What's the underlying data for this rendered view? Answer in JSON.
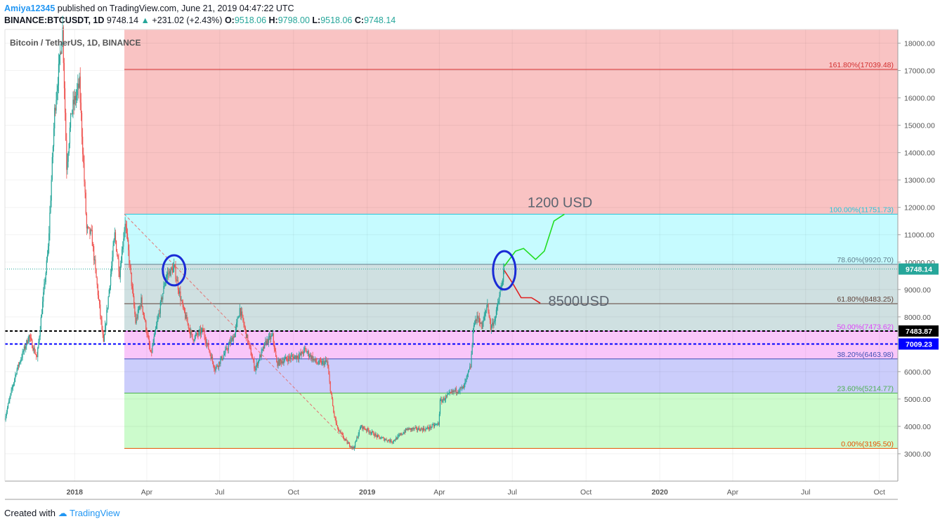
{
  "header": {
    "user": "Amiya12345",
    "published": "published on TradingView.com, June 21, 2019 04:47:22 UTC",
    "symbol": "BINANCE:BTCUSDT, 1D",
    "last": "9748.14",
    "change": "+231.02 (+2.43%)",
    "o_label": "O:",
    "o": "9518.06",
    "h_label": "H:",
    "h": "9798.00",
    "l_label": "L:",
    "l": "9518.06",
    "c_label": "C:",
    "c": "9748.14"
  },
  "pane_title": "Bitcoin / TetherUS, 1D, BINANCE",
  "footer": {
    "created_with": "Created with",
    "brand": "TradingView"
  },
  "chart_data": {
    "type": "candlestick",
    "title": "Bitcoin / TetherUS, 1D, BINANCE",
    "ylim": [
      2000,
      18500
    ],
    "y_ticks": [
      "3000.00",
      "4000.00",
      "5000.00",
      "6000.00",
      "7000.00",
      "8000.00",
      "9000.00",
      "10000.00",
      "11000.00",
      "12000.00",
      "13000.00",
      "14000.00",
      "15000.00",
      "16000.00",
      "17000.00",
      "18000.00"
    ],
    "x_ticks": [
      {
        "label": "2018",
        "date": "2018-01-01",
        "bold": true
      },
      {
        "label": "Apr",
        "date": "2018-04-01"
      },
      {
        "label": "Jul",
        "date": "2018-07-01"
      },
      {
        "label": "Oct",
        "date": "2018-10-01"
      },
      {
        "label": "2019",
        "date": "2019-01-01",
        "bold": true
      },
      {
        "label": "Apr",
        "date": "2019-04-01"
      },
      {
        "label": "Jul",
        "date": "2019-07-01"
      },
      {
        "label": "Oct",
        "date": "2019-10-01"
      },
      {
        "label": "2020",
        "date": "2020-01-01",
        "bold": true
      },
      {
        "label": "Apr",
        "date": "2020-04-01"
      },
      {
        "label": "Jul",
        "date": "2020-07-01"
      },
      {
        "label": "Oct",
        "date": "2020-10-01"
      }
    ],
    "x_range": [
      "2017-10-06",
      "2020-10-24"
    ],
    "price_path": [
      [
        "2017-10-06",
        4300
      ],
      [
        "2017-10-20",
        6000
      ],
      [
        "2017-11-05",
        7300
      ],
      [
        "2017-11-15",
        6500
      ],
      [
        "2017-11-29",
        10500
      ],
      [
        "2017-12-07",
        15500
      ],
      [
        "2017-12-17",
        18500
      ],
      [
        "2017-12-22",
        13500
      ],
      [
        "2017-12-28",
        15500
      ],
      [
        "2018-01-07",
        16500
      ],
      [
        "2018-01-16",
        11200
      ],
      [
        "2018-01-22",
        11000
      ],
      [
        "2018-02-06",
        7000
      ],
      [
        "2018-02-20",
        11000
      ],
      [
        "2018-02-26",
        9600
      ],
      [
        "2018-03-05",
        11500
      ],
      [
        "2018-03-18",
        7800
      ],
      [
        "2018-03-25",
        8600
      ],
      [
        "2018-04-06",
        6600
      ],
      [
        "2018-04-16",
        8100
      ],
      [
        "2018-04-25",
        9500
      ],
      [
        "2018-05-05",
        9800
      ],
      [
        "2018-05-16",
        8300
      ],
      [
        "2018-05-28",
        7200
      ],
      [
        "2018-06-10",
        7500
      ],
      [
        "2018-06-25",
        6100
      ],
      [
        "2018-07-06",
        6600
      ],
      [
        "2018-07-20",
        7400
      ],
      [
        "2018-07-26",
        8300
      ],
      [
        "2018-08-06",
        7000
      ],
      [
        "2018-08-14",
        6100
      ],
      [
        "2018-08-28",
        7100
      ],
      [
        "2018-09-05",
        7300
      ],
      [
        "2018-09-10",
        6300
      ],
      [
        "2018-09-25",
        6500
      ],
      [
        "2018-10-10",
        6600
      ],
      [
        "2018-10-15",
        6800
      ],
      [
        "2018-10-31",
        6300
      ],
      [
        "2018-11-12",
        6350
      ],
      [
        "2018-11-15",
        5600
      ],
      [
        "2018-11-20",
        4500
      ],
      [
        "2018-11-25",
        3900
      ],
      [
        "2018-12-07",
        3400
      ],
      [
        "2018-12-15",
        3200
      ],
      [
        "2018-12-24",
        4000
      ],
      [
        "2019-01-05",
        3800
      ],
      [
        "2019-01-15",
        3600
      ],
      [
        "2019-02-01",
        3450
      ],
      [
        "2019-02-08",
        3600
      ],
      [
        "2019-02-20",
        3900
      ],
      [
        "2019-03-15",
        3900
      ],
      [
        "2019-03-31",
        4100
      ],
      [
        "2019-04-02",
        4900
      ],
      [
        "2019-04-20",
        5300
      ],
      [
        "2019-05-01",
        5400
      ],
      [
        "2019-05-10",
        6200
      ],
      [
        "2019-05-14",
        7800
      ],
      [
        "2019-05-20",
        8000
      ],
      [
        "2019-05-24",
        7600
      ],
      [
        "2019-05-31",
        8500
      ],
      [
        "2019-06-04",
        7600
      ],
      [
        "2019-06-10",
        8000
      ],
      [
        "2019-06-16",
        8900
      ],
      [
        "2019-06-21",
        9748.14
      ]
    ],
    "last_price": "9748.14",
    "fibonacci_levels": [
      {
        "level": "161.80%",
        "price": "17039.48",
        "label": "161.80%(17039.48)",
        "color": "#d32f2f"
      },
      {
        "level": "100.00%",
        "price": "11751.73",
        "label": "100.00%(11751.73)",
        "color": "#26c6da"
      },
      {
        "level": "78.60%",
        "price": "9920.70",
        "label": "78.60%(9920.70)",
        "color": "#607d8b"
      },
      {
        "level": "61.80%",
        "price": "8483.25",
        "label": "61.80%(8483.25)",
        "color": "#5d4037"
      },
      {
        "level": "50.00%",
        "price": "7473.62",
        "label": "50.00%(7473.62)",
        "color": "#e040fb"
      },
      {
        "level": "38.20%",
        "price": "6463.98",
        "label": "38.20%(6463.98)",
        "color": "#3f51b5"
      },
      {
        "level": "23.60%",
        "price": "5214.77",
        "label": "23.60%(5214.77)",
        "color": "#4caf50"
      },
      {
        "level": "0.00%",
        "price": "3195.50",
        "label": "0.00%(3195.50)",
        "color": "#e65100"
      }
    ],
    "fib_zones": [
      {
        "from": "11751.73",
        "to": "17039.48",
        "color": "#f9c3c3",
        "top_extends": true
      },
      {
        "from": "9920.70",
        "to": "11751.73",
        "color": "#c6fbff"
      },
      {
        "from": "8483.25",
        "to": "9920.70",
        "color": "#cfe0e1"
      },
      {
        "from": "7473.62",
        "to": "8483.25",
        "color": "#cfe0e1"
      },
      {
        "from": "6463.98",
        "to": "7473.62",
        "color": "#f9c6f9"
      },
      {
        "from": "5214.77",
        "to": "6463.98",
        "color": "#cbcdfb"
      },
      {
        "from": "3195.50",
        "to": "5214.77",
        "color": "#ccfbcc"
      }
    ],
    "fib_start_date": "2018-03-04",
    "horizontal_lines": [
      {
        "price": "7483.87",
        "style": "dashed",
        "color": "#000000",
        "label": "7483.87"
      },
      {
        "price": "7009.23",
        "style": "dashed",
        "color": "#0000ff",
        "label": "7009.23"
      }
    ],
    "trend_line": {
      "from": [
        "2018-03-04",
        11751.73
      ],
      "to": [
        "2018-12-15",
        3195.5
      ],
      "color": "#e57373"
    },
    "annotations": [
      {
        "text": "1200 USD",
        "date": "2019-07-20",
        "price": 12000
      },
      {
        "text": "8500USD",
        "date": "2019-08-15",
        "price": 8400
      }
    ],
    "projection_up": [
      [
        "2019-06-21",
        9850
      ],
      [
        "2019-07-05",
        10400
      ],
      [
        "2019-07-15",
        10500
      ],
      [
        "2019-07-30",
        10100
      ],
      [
        "2019-08-10",
        10400
      ],
      [
        "2019-08-22",
        11500
      ],
      [
        "2019-09-04",
        11751.73
      ]
    ],
    "projection_down": [
      [
        "2019-06-21",
        9700
      ],
      [
        "2019-07-02",
        9200
      ],
      [
        "2019-07-12",
        8700
      ],
      [
        "2019-07-25",
        8700
      ],
      [
        "2019-08-05",
        8500
      ]
    ],
    "circles": [
      {
        "center": [
          "2018-05-05",
          9700
        ],
        "rx_days": 14,
        "ry_price": 550,
        "color": "#1a2bd6"
      },
      {
        "center": [
          "2019-06-21",
          9700
        ],
        "rx_days": 14,
        "ry_price": 700,
        "color": "#1a2bd6"
      }
    ]
  }
}
